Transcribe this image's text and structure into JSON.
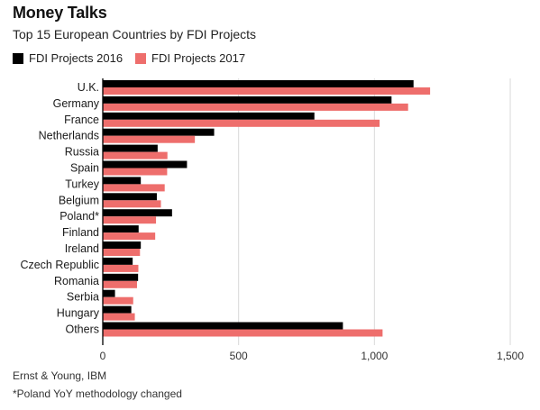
{
  "chart_data": {
    "type": "bar",
    "orientation": "horizontal",
    "title": "Money Talks",
    "subtitle": "Top 15 European Countries by FDI Projects",
    "categories": [
      "U.K.",
      "Germany",
      "France",
      "Netherlands",
      "Russia",
      "Spain",
      "Turkey",
      "Belgium",
      "Poland*",
      "Finland",
      "Ireland",
      "Czech Republic",
      "Romania",
      "Serbia",
      "Hungary",
      "Others"
    ],
    "series": [
      {
        "name": "FDI Projects 2016",
        "color": "#000000",
        "values": [
          1144,
          1063,
          779,
          410,
          202,
          310,
          140,
          199,
          255,
          132,
          140,
          110,
          130,
          45,
          105,
          884
        ]
      },
      {
        "name": "FDI Projects 2017",
        "color": "#ee6e6c",
        "values": [
          1205,
          1124,
          1019,
          339,
          238,
          237,
          228,
          214,
          196,
          193,
          137,
          131,
          126,
          112,
          118,
          1030
        ]
      }
    ],
    "xlim": [
      0,
      1500
    ],
    "xticks": [
      0,
      500,
      1000,
      1500
    ],
    "xtick_labels": [
      "0",
      "500",
      "1,000",
      "1,500"
    ],
    "grid": true,
    "legend_placement": "top-left"
  },
  "footer": {
    "source": "Ernst & Young, IBM",
    "footnote": "*Poland YoY methodology changed"
  }
}
